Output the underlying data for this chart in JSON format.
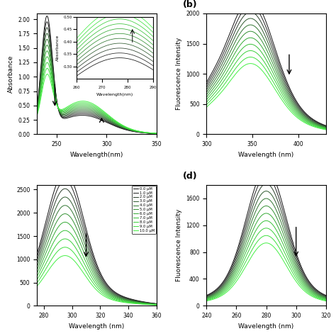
{
  "n_curves": 11,
  "concentrations": [
    "0.0 μM",
    "1.0 μM",
    "2.0 μM",
    "3.0 μM",
    "4.0 μM",
    "5.0 μM",
    "6.0 μM",
    "7.0 μM",
    "8.0 μM",
    "9.0 μM",
    "10.0 μM"
  ],
  "colors": [
    "#111111",
    "#222222",
    "#2a3d2a",
    "#2e5a2e",
    "#307530",
    "#329032",
    "#34aa34",
    "#36c036",
    "#3ad03a",
    "#3ee03e",
    "#44f044"
  ],
  "panel_a_xlabel": "Wavelength(nm)",
  "panel_b_xlabel": "Wavelength (nm)",
  "panel_c_xlabel": "Wavelength (nm)",
  "panel_d_xlabel": "Wavelength (nm)",
  "panel_a_ylabel": "Absorbance",
  "panel_b_ylabel": "Fluorescence Intensity",
  "panel_d_ylabel": "Fluorescence Intensity",
  "panel_b_label": "(b)",
  "panel_d_label": "(d)",
  "inset_ylabel": "Absorbance",
  "inset_xlabel": "Wavelength(nm)"
}
